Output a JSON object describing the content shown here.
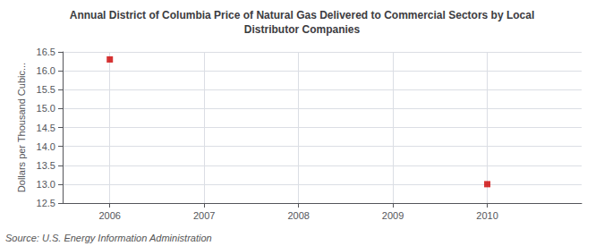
{
  "chart_data": {
    "type": "scatter",
    "title": "Annual District of Columbia Price of Natural Gas Delivered to Commercial Sectors by Local\nDistributor Companies",
    "ylabel": "Dollars per Thousand Cubic...",
    "annotations": [
      "Source: U.S. Energy Information Administration"
    ],
    "x": [
      2006,
      2010
    ],
    "values": [
      16.3,
      13.0
    ],
    "color": "#cc0000",
    "marker": "square",
    "xlim": [
      2005.5,
      2011.0
    ],
    "ylim": [
      12.5,
      16.5
    ],
    "xticks": [
      2006,
      2007,
      2008,
      2009,
      2010
    ],
    "yticks": [
      12.5,
      {
        "value": 13,
        "label": "13.0"
      },
      13.5,
      {
        "value": 14,
        "label": "14.0"
      },
      14.5,
      {
        "value": 15,
        "label": "15.0"
      },
      15.5,
      {
        "value": 16,
        "label": "16.0"
      },
      16.5
    ],
    "grid": true
  }
}
